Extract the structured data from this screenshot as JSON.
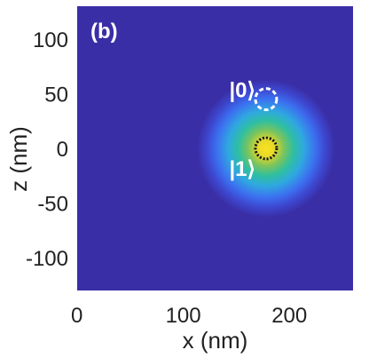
{
  "chart_data": {
    "type": "heatmap",
    "panel_label": "(b)",
    "xlabel": "x (nm)",
    "ylabel": "z (nm)",
    "xlim": [
      0,
      260
    ],
    "ylim": [
      -130,
      130
    ],
    "xticks": [
      0,
      100,
      200
    ],
    "yticks": [
      100,
      50,
      0,
      -50,
      -100
    ],
    "colormap": [
      "#3a2ea6",
      "#3f60e6",
      "#35b8d6",
      "#2fc590",
      "#a7cb3a",
      "#f4e31f"
    ],
    "peak": {
      "x": 178,
      "z": 0,
      "sigma": 13
    },
    "states": [
      {
        "label": "|0⟩",
        "x": 178,
        "z": 45,
        "radius": 10,
        "color": "#ffffff",
        "style": "dashed"
      },
      {
        "label": "|1⟩",
        "x": 178,
        "z": 0,
        "radius": 10,
        "color": "#111111",
        "style": "dotted"
      }
    ]
  }
}
